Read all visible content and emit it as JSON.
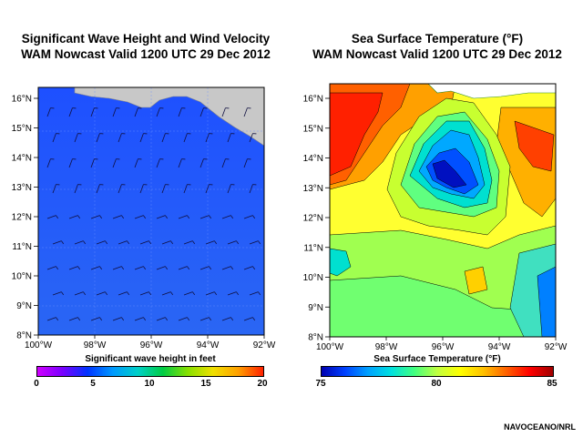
{
  "left_panel": {
    "title_line1": "Significant Wave Height and Wind Velocity",
    "title_line2": "WAM Nowcast Valid 1200 UTC 29 Dec 2012",
    "lat_labels": [
      "16°N",
      "15°N",
      "14°N",
      "13°N",
      "12°N",
      "11°N",
      "10°N",
      "9°N",
      "8°N"
    ],
    "lon_labels": [
      "100°W",
      "98°W",
      "96°W",
      "94°W",
      "92°W"
    ],
    "colorbar_title": "Significant wave height in feet",
    "colorbar_ticks": [
      "0",
      "5",
      "10",
      "15",
      "20"
    ],
    "colorbar_colors": [
      "#d000ff",
      "#7a00ff",
      "#0033ff",
      "#0099ff",
      "#00d0c8",
      "#00cc44",
      "#88e000",
      "#f0e000",
      "#ffa000",
      "#ff2000"
    ]
  },
  "right_panel": {
    "title_line1": "Sea Surface Temperature (°F)",
    "title_line2": "WAM Nowcast Valid 1200 UTC 29 Dec 2012",
    "lat_labels": [
      "16°N",
      "15°N",
      "14°N",
      "13°N",
      "12°N",
      "11°N",
      "10°N",
      "9°N",
      "8°N"
    ],
    "lon_labels": [
      "100°W",
      "98°W",
      "96°W",
      "94°W",
      "92°W"
    ],
    "colorbar_title": "Sea Surface Temperature (°F)",
    "colorbar_ticks": [
      "75",
      "80",
      "85"
    ],
    "colorbar_colors": [
      "#0000b0",
      "#0040ff",
      "#00a0ff",
      "#00e0e0",
      "#40ff80",
      "#c0ff40",
      "#ffff00",
      "#ffc000",
      "#ff6000",
      "#ff0000",
      "#a00000"
    ]
  },
  "credit": "NAVOCEANO/NRL"
}
